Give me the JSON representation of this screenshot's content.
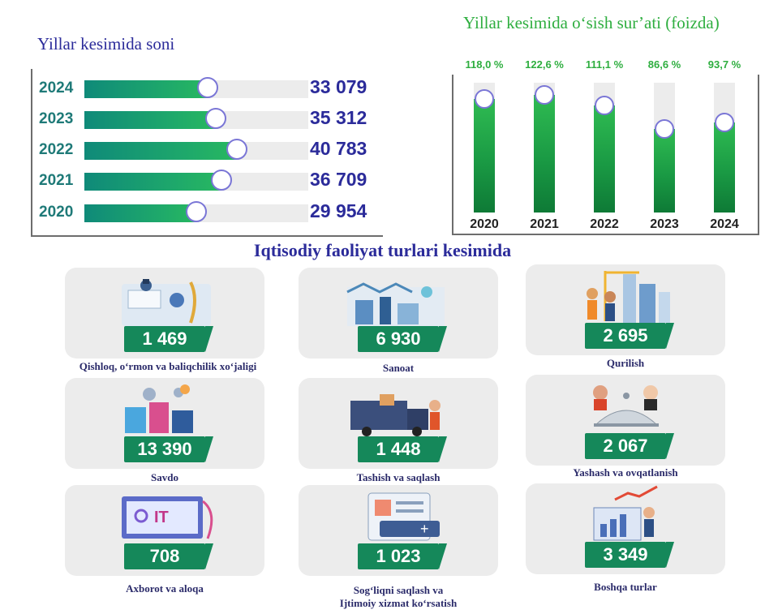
{
  "chart_data": [
    {
      "type": "bar",
      "orientation": "horizontal",
      "title": "Yillar kesimida soni",
      "categories": [
        "2024",
        "2023",
        "2022",
        "2021",
        "2020"
      ],
      "values": [
        33079,
        35312,
        40783,
        36709,
        29954
      ],
      "value_labels": [
        "33 079",
        "35 312",
        "40 783",
        "36 709",
        "29 954"
      ],
      "xlim": [
        0,
        60000
      ]
    },
    {
      "type": "bar",
      "orientation": "vertical",
      "title": "Yillar kesimida o‘sish sur’ati (foizda)",
      "categories": [
        "2020",
        "2021",
        "2022",
        "2023",
        "2024"
      ],
      "values": [
        118.0,
        122.6,
        111.1,
        86.6,
        93.7
      ],
      "value_labels": [
        "118,0 %",
        "122,6 %",
        "111,1 %",
        "86,6 %",
        "93,7 %"
      ],
      "ylim": [
        0,
        135
      ]
    }
  ],
  "section_title": "Iqtisodiy faoliyat turlari kesimida",
  "activities": [
    {
      "value": "1 469",
      "label": "Qishloq, o‘rmon va baliqchilik xo‘jaligi",
      "icon": "farming-lab-icon"
    },
    {
      "value": "6 930",
      "label": "Sanoat",
      "icon": "factory-robot-icon"
    },
    {
      "value": "2 695",
      "label": "Qurilish",
      "icon": "construction-workers-icon"
    },
    {
      "value": "13 390",
      "label": "Savdo",
      "icon": "shopping-bags-icon"
    },
    {
      "value": "1 448",
      "label": "Tashish va saqlash",
      "icon": "delivery-truck-icon"
    },
    {
      "value": "2 067",
      "label": "Yashash va ovqatlanish",
      "icon": "hotel-service-icon"
    },
    {
      "value": "708",
      "label": "Axborot va aloqa",
      "icon": "it-monitor-icon"
    },
    {
      "value": "1 023",
      "label": "Sog‘liqni saqlash va",
      "label2": "Ijtimoiy xizmat ko‘rsatish",
      "icon": "medical-card-icon"
    },
    {
      "value": "3 349",
      "label": "Boshqa turlar",
      "icon": "growth-chart-icon"
    }
  ],
  "colors": {
    "title_blue": "#2b2b9a",
    "title_green": "#2eae3f",
    "bar_green": "#15885a",
    "track_gray": "#ececec"
  }
}
